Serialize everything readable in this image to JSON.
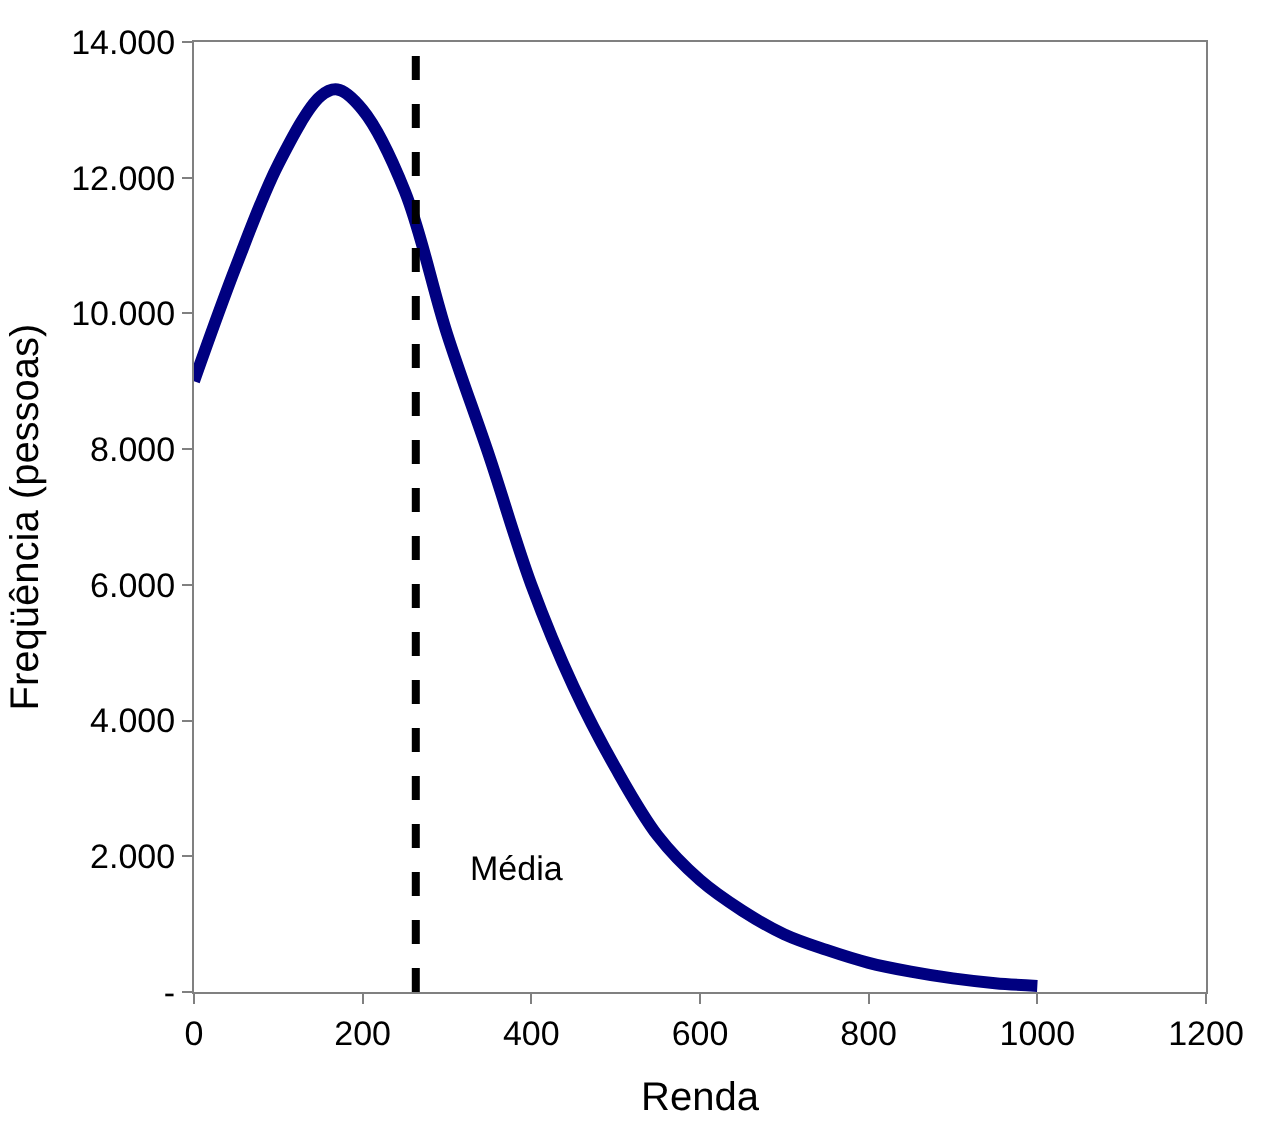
{
  "chart_data": {
    "type": "line",
    "xlabel": "Renda",
    "ylabel": "Freqüência (pessoas)",
    "x": [
      0,
      50,
      100,
      150,
      170,
      200,
      250,
      300,
      350,
      400,
      450,
      500,
      550,
      600,
      650,
      700,
      750,
      800,
      850,
      900,
      950,
      1000
    ],
    "series": [
      {
        "color": "#000080",
        "values": [
          9000,
          10700,
          12200,
          13200,
          13300,
          13000,
          11800,
          9700,
          7900,
          6000,
          4500,
          3300,
          2300,
          1650,
          1200,
          850,
          620,
          430,
          300,
          200,
          130,
          90
        ]
      }
    ],
    "xlim": [
      0,
      1200
    ],
    "xticks": [
      0,
      200,
      400,
      600,
      800,
      1000,
      1200
    ],
    "ylim": [
      0,
      14000
    ],
    "yticks": [
      {
        "value": 0,
        "label": "-"
      },
      {
        "value": 2000,
        "label": "2.000"
      },
      {
        "value": 4000,
        "label": "4.000"
      },
      {
        "value": 6000,
        "label": "6.000"
      },
      {
        "value": 8000,
        "label": "8.000"
      },
      {
        "value": 10000,
        "label": "10.000"
      },
      {
        "value": 12000,
        "label": "12.000"
      },
      {
        "value": 14000,
        "label": "14.000"
      }
    ],
    "ref_lines": [
      {
        "axis": "x",
        "value": 263,
        "label": "Média",
        "color": "#000000",
        "line_style": "dashed"
      }
    ],
    "legend": false,
    "marker": "none",
    "line_style": "solid"
  }
}
